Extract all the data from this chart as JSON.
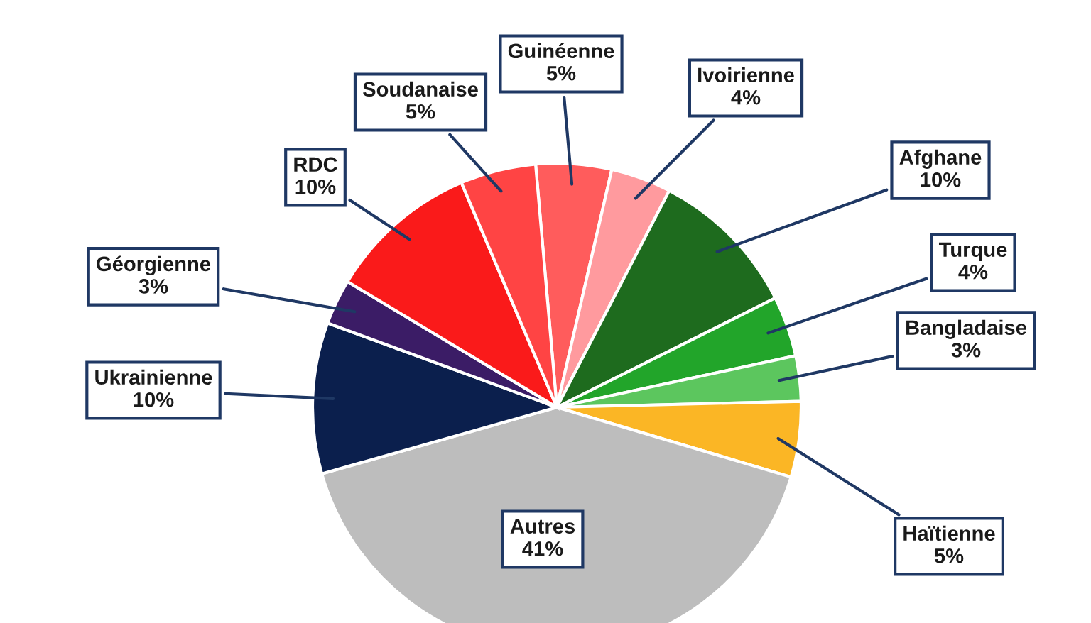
{
  "chart_data": {
    "type": "pie",
    "categories": [
      "Guinéenne",
      "Ivoirienne",
      "Afghane",
      "Turque",
      "Bangladaise",
      "Haïtienne",
      "Autres",
      "Ukrainienne",
      "Géorgienne",
      "RDC",
      "Soudanaise"
    ],
    "values": [
      5,
      4,
      10,
      4,
      3,
      5,
      41,
      10,
      3,
      10,
      5
    ],
    "value_labels": [
      "5%",
      "4%",
      "10%",
      "4%",
      "3%",
      "5%",
      "41%",
      "10%",
      "3%",
      "10%",
      "5%"
    ],
    "colors": [
      "#ff5c5c",
      "#ff9a9e",
      "#1e6b1e",
      "#22a52a",
      "#5cc65e",
      "#fbb625",
      "#bdbdbd",
      "#0b1f4d",
      "#3b1c66",
      "#fa1a1a",
      "#ff4444"
    ],
    "legend": false
  }
}
